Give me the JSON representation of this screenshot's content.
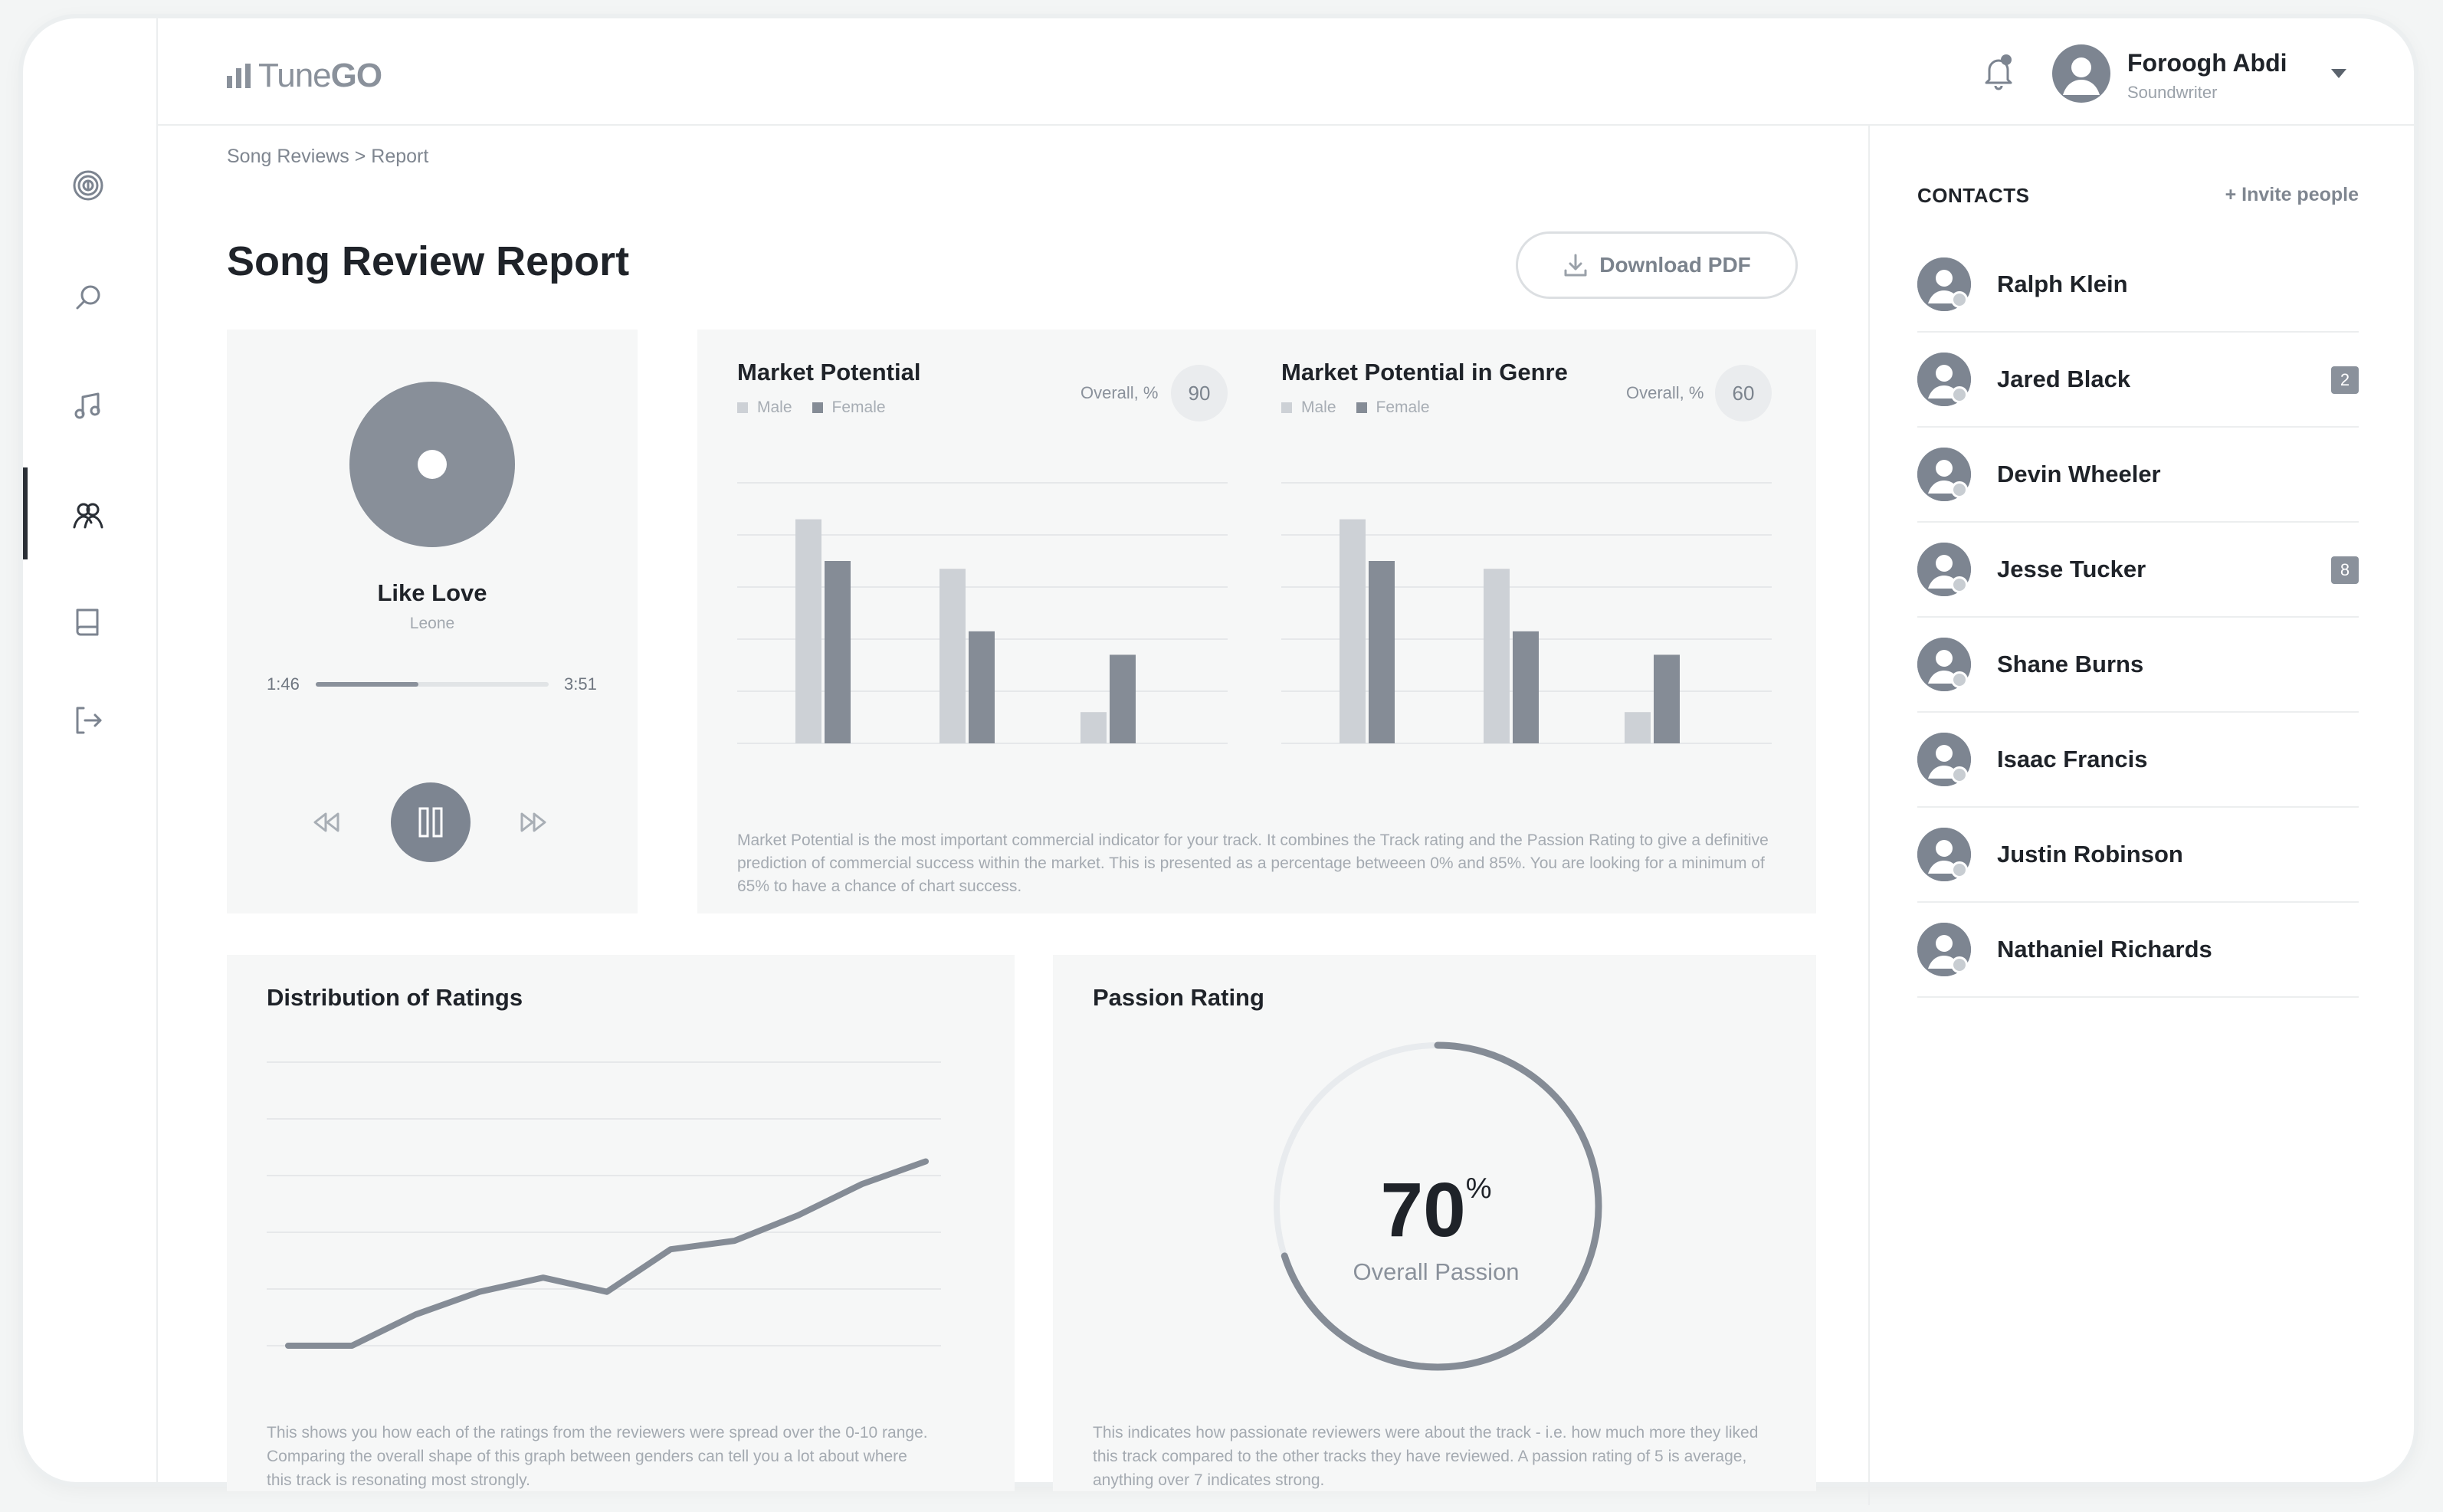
{
  "app": {
    "logo_text": "Tune",
    "logo_bold": "GO"
  },
  "user": {
    "name": "Foroogh Abdi",
    "role": "Soundwriter"
  },
  "breadcrumb": "Song Reviews > Report",
  "page_title": "Song Review Report",
  "download_label": "Download PDF",
  "player": {
    "title": "Like Love",
    "artist": "Leone",
    "elapsed": "1:46",
    "duration": "3:51",
    "progress": 0.44
  },
  "market": {
    "description": "Market Potential is the most important commercial indicator for your track. It combines the Track rating and the Passion Rating to give a definitive prediction of commercial success within the market. This is presented as a percentage betweeen 0% and 85%. You are looking for a minimum of 65% to have a chance of chart success."
  },
  "distribution": {
    "title": "Distribution of Ratings",
    "description": "This shows you how each of the ratings from the reviewers were spread over the 0-10 range. Comparing the overall shape of this graph between genders can tell you a lot about where this track is resonating most strongly."
  },
  "passion": {
    "title": "Passion Rating",
    "value": "70",
    "unit": "%",
    "label": "Overall Passion",
    "description": "This indicates how passionate reviewers were about the track - i.e. how much more they liked this track compared to the other tracks they have reviewed. A passion rating of 5 is average, anything over 7 indicates strong."
  },
  "contacts": {
    "header": "CONTACTS",
    "invite_label": "+ Invite people",
    "items": [
      {
        "name": "Ralph Klein",
        "badge": ""
      },
      {
        "name": "Jared Black",
        "badge": "2"
      },
      {
        "name": "Devin Wheeler",
        "badge": ""
      },
      {
        "name": "Jesse Tucker",
        "badge": "8"
      },
      {
        "name": "Shane Burns",
        "badge": ""
      },
      {
        "name": "Isaac Francis",
        "badge": ""
      },
      {
        "name": "Justin Robinson",
        "badge": ""
      },
      {
        "name": "Nathaniel Richards",
        "badge": ""
      }
    ]
  },
  "colors": {
    "accent": "#7d8591",
    "male": "#cdd1d6",
    "female": "#858c96"
  },
  "icons": [
    "fingerprint-icon",
    "search-icon",
    "music-note-icon",
    "users-icon",
    "book-icon",
    "logout-icon",
    "bell-icon",
    "download-icon",
    "rewind-icon",
    "pause-icon",
    "fast-forward-icon",
    "user-icon"
  ],
  "chart_data": [
    {
      "type": "bar",
      "title": "Market Potential",
      "overall_label": "Overall, %",
      "overall_value": "90",
      "categories": [
        "",
        "",
        ""
      ],
      "series": [
        {
          "name": "Male",
          "values": [
            86,
            67,
            12
          ]
        },
        {
          "name": "Female",
          "values": [
            70,
            43,
            34
          ]
        }
      ],
      "ylim": [
        0,
        100
      ],
      "grid": true
    },
    {
      "type": "bar",
      "title": "Market Potential in Genre",
      "overall_label": "Overall, %",
      "overall_value": "60",
      "categories": [
        "",
        "",
        ""
      ],
      "series": [
        {
          "name": "Male",
          "values": [
            86,
            67,
            12
          ]
        },
        {
          "name": "Female",
          "values": [
            70,
            43,
            34
          ]
        }
      ],
      "ylim": [
        0,
        100
      ],
      "grid": true
    },
    {
      "type": "line",
      "title": "Distribution of Ratings",
      "x": [
        0,
        1,
        2,
        3,
        4,
        5,
        6,
        7,
        8,
        9,
        10
      ],
      "series": [
        {
          "values": [
            0.0,
            0.0,
            0.11,
            0.19,
            0.24,
            0.19,
            0.34,
            0.37,
            0.46,
            0.57,
            0.65
          ]
        }
      ],
      "ylim": [
        0,
        1
      ],
      "grid": true
    },
    {
      "type": "pie",
      "title": "Passion Rating",
      "values": [
        70,
        30
      ],
      "center_text": "70%"
    }
  ]
}
